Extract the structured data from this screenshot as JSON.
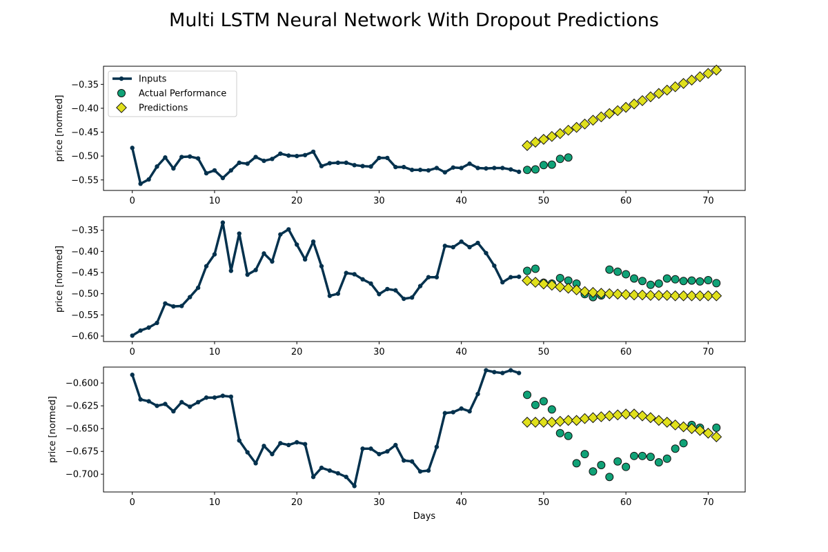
{
  "title": "Multi LSTM Neural Network With Dropout Predictions",
  "colors": {
    "inputs": "#03314d",
    "actual_fill": "#10a277",
    "prediction_fill": "#e0e01c",
    "marker_edge": "#111111"
  },
  "chart_data": [
    {
      "type": "line",
      "ylabel": "price [normed]",
      "xlabel": "",
      "xlim": [
        -3.5,
        74.5
      ],
      "ylim": [
        -0.572,
        -0.312
      ],
      "xticks": [
        0,
        10,
        20,
        30,
        40,
        50,
        60,
        70
      ],
      "yticks": [
        -0.55,
        -0.5,
        -0.45,
        -0.4,
        -0.35
      ],
      "ytick_labels": [
        "−0.55",
        "−0.50",
        "−0.45",
        "−0.40",
        "−0.35"
      ],
      "grid": false,
      "legend": {
        "placement": "top-left",
        "entries": [
          "Inputs",
          "Actual Performance",
          "Predictions"
        ]
      },
      "series": [
        {
          "name": "Inputs",
          "x_start": 0,
          "values": [
            -0.483,
            -0.558,
            -0.549,
            -0.522,
            -0.503,
            -0.526,
            -0.502,
            -0.501,
            -0.505,
            -0.536,
            -0.53,
            -0.546,
            -0.53,
            -0.514,
            -0.516,
            -0.502,
            -0.51,
            -0.506,
            -0.495,
            -0.499,
            -0.5,
            -0.498,
            -0.491,
            -0.521,
            -0.515,
            -0.514,
            -0.514,
            -0.519,
            -0.521,
            -0.522,
            -0.504,
            -0.504,
            -0.523,
            -0.523,
            -0.529,
            -0.529,
            -0.53,
            -0.525,
            -0.534,
            -0.524,
            -0.525,
            -0.516,
            -0.525,
            -0.526,
            -0.525,
            -0.525,
            -0.528,
            -0.533
          ]
        },
        {
          "name": "Actual Performance",
          "x_start": 48,
          "values": [
            -0.529,
            -0.528,
            -0.519,
            -0.518,
            -0.506,
            -0.503,
            null,
            null,
            null,
            null,
            null,
            null,
            null,
            null,
            null,
            null,
            null,
            null,
            null,
            null,
            null,
            null,
            null,
            null
          ]
        },
        {
          "name": "Predictions",
          "x_start": 48,
          "values": [
            -0.478,
            -0.471,
            -0.465,
            -0.459,
            -0.453,
            -0.446,
            -0.44,
            -0.433,
            -0.425,
            -0.418,
            -0.411,
            -0.405,
            -0.398,
            -0.391,
            -0.384,
            -0.376,
            -0.369,
            -0.362,
            -0.355,
            -0.348,
            -0.341,
            -0.334,
            -0.327,
            -0.32
          ]
        }
      ]
    },
    {
      "type": "line",
      "ylabel": "price [normed]",
      "xlabel": "",
      "xlim": [
        -3.5,
        74.5
      ],
      "ylim": [
        -0.613,
        -0.318
      ],
      "xticks": [
        0,
        10,
        20,
        30,
        40,
        50,
        60,
        70
      ],
      "yticks": [
        -0.6,
        -0.55,
        -0.5,
        -0.45,
        -0.4,
        -0.35
      ],
      "ytick_labels": [
        "−0.60",
        "−0.55",
        "−0.50",
        "−0.45",
        "−0.40",
        "−0.35"
      ],
      "grid": false,
      "series": [
        {
          "name": "Inputs",
          "x_start": 0,
          "values": [
            -0.599,
            -0.587,
            -0.58,
            -0.569,
            -0.523,
            -0.53,
            -0.529,
            -0.508,
            -0.486,
            -0.435,
            -0.407,
            -0.332,
            -0.446,
            -0.358,
            -0.455,
            -0.444,
            -0.405,
            -0.424,
            -0.36,
            -0.348,
            -0.384,
            -0.419,
            -0.377,
            -0.435,
            -0.505,
            -0.5,
            -0.451,
            -0.454,
            -0.466,
            -0.476,
            -0.501,
            -0.489,
            -0.492,
            -0.512,
            -0.509,
            -0.482,
            -0.461,
            -0.461,
            -0.387,
            -0.39,
            -0.377,
            -0.39,
            -0.38,
            -0.404,
            -0.434,
            -0.473,
            -0.461,
            -0.46
          ]
        },
        {
          "name": "Actual Performance",
          "x_start": 48,
          "values": [
            -0.446,
            -0.441,
            -0.474,
            -0.476,
            -0.463,
            -0.469,
            -0.476,
            -0.501,
            -0.508,
            -0.504,
            -0.443,
            -0.448,
            -0.454,
            -0.464,
            -0.47,
            -0.479,
            -0.476,
            -0.464,
            -0.466,
            -0.47,
            -0.469,
            -0.471,
            -0.468,
            -0.475
          ]
        },
        {
          "name": "Predictions",
          "x_start": 48,
          "values": [
            -0.469,
            -0.473,
            -0.477,
            -0.48,
            -0.484,
            -0.487,
            -0.491,
            -0.495,
            -0.497,
            -0.499,
            -0.5,
            -0.501,
            -0.502,
            -0.503,
            -0.503,
            -0.504,
            -0.504,
            -0.504,
            -0.505,
            -0.505,
            -0.505,
            -0.505,
            -0.505,
            -0.505
          ]
        }
      ]
    },
    {
      "type": "line",
      "ylabel": "price [normed]",
      "xlabel": "Days",
      "xlim": [
        -3.5,
        74.5
      ],
      "ylim": [
        -0.7195,
        -0.5825
      ],
      "xticks": [
        0,
        10,
        20,
        30,
        40,
        50,
        60,
        70
      ],
      "yticks": [
        -0.7,
        -0.675,
        -0.65,
        -0.625,
        -0.6
      ],
      "ytick_labels": [
        "−0.700",
        "−0.675",
        "−0.650",
        "−0.625",
        "−0.600"
      ],
      "grid": false,
      "series": [
        {
          "name": "Inputs",
          "x_start": 0,
          "values": [
            -0.591,
            -0.618,
            -0.62,
            -0.625,
            -0.623,
            -0.631,
            -0.621,
            -0.626,
            -0.621,
            -0.616,
            -0.616,
            -0.614,
            -0.615,
            -0.663,
            -0.676,
            -0.688,
            -0.669,
            -0.678,
            -0.666,
            -0.668,
            -0.665,
            -0.667,
            -0.703,
            -0.693,
            -0.696,
            -0.699,
            -0.703,
            -0.713,
            -0.672,
            -0.672,
            -0.678,
            -0.675,
            -0.668,
            -0.685,
            -0.686,
            -0.697,
            -0.696,
            -0.67,
            -0.633,
            -0.632,
            -0.628,
            -0.631,
            -0.612,
            -0.586,
            -0.588,
            -0.589,
            -0.586,
            -0.589
          ]
        },
        {
          "name": "Actual Performance",
          "x_start": 48,
          "values": [
            -0.613,
            -0.624,
            -0.62,
            -0.629,
            -0.655,
            -0.658,
            -0.688,
            -0.678,
            -0.697,
            -0.69,
            -0.703,
            -0.686,
            -0.692,
            -0.68,
            -0.68,
            -0.681,
            -0.687,
            -0.683,
            -0.672,
            -0.666,
            -0.646,
            -0.649,
            null,
            -0.649
          ]
        },
        {
          "name": "Predictions",
          "x_start": 48,
          "values": [
            -0.643,
            -0.643,
            -0.643,
            -0.643,
            -0.642,
            -0.641,
            -0.641,
            -0.639,
            -0.638,
            -0.637,
            -0.636,
            -0.635,
            -0.634,
            -0.634,
            -0.636,
            -0.638,
            -0.641,
            -0.643,
            -0.646,
            -0.648,
            -0.65,
            -0.652,
            -0.655,
            -0.659
          ]
        }
      ]
    }
  ]
}
